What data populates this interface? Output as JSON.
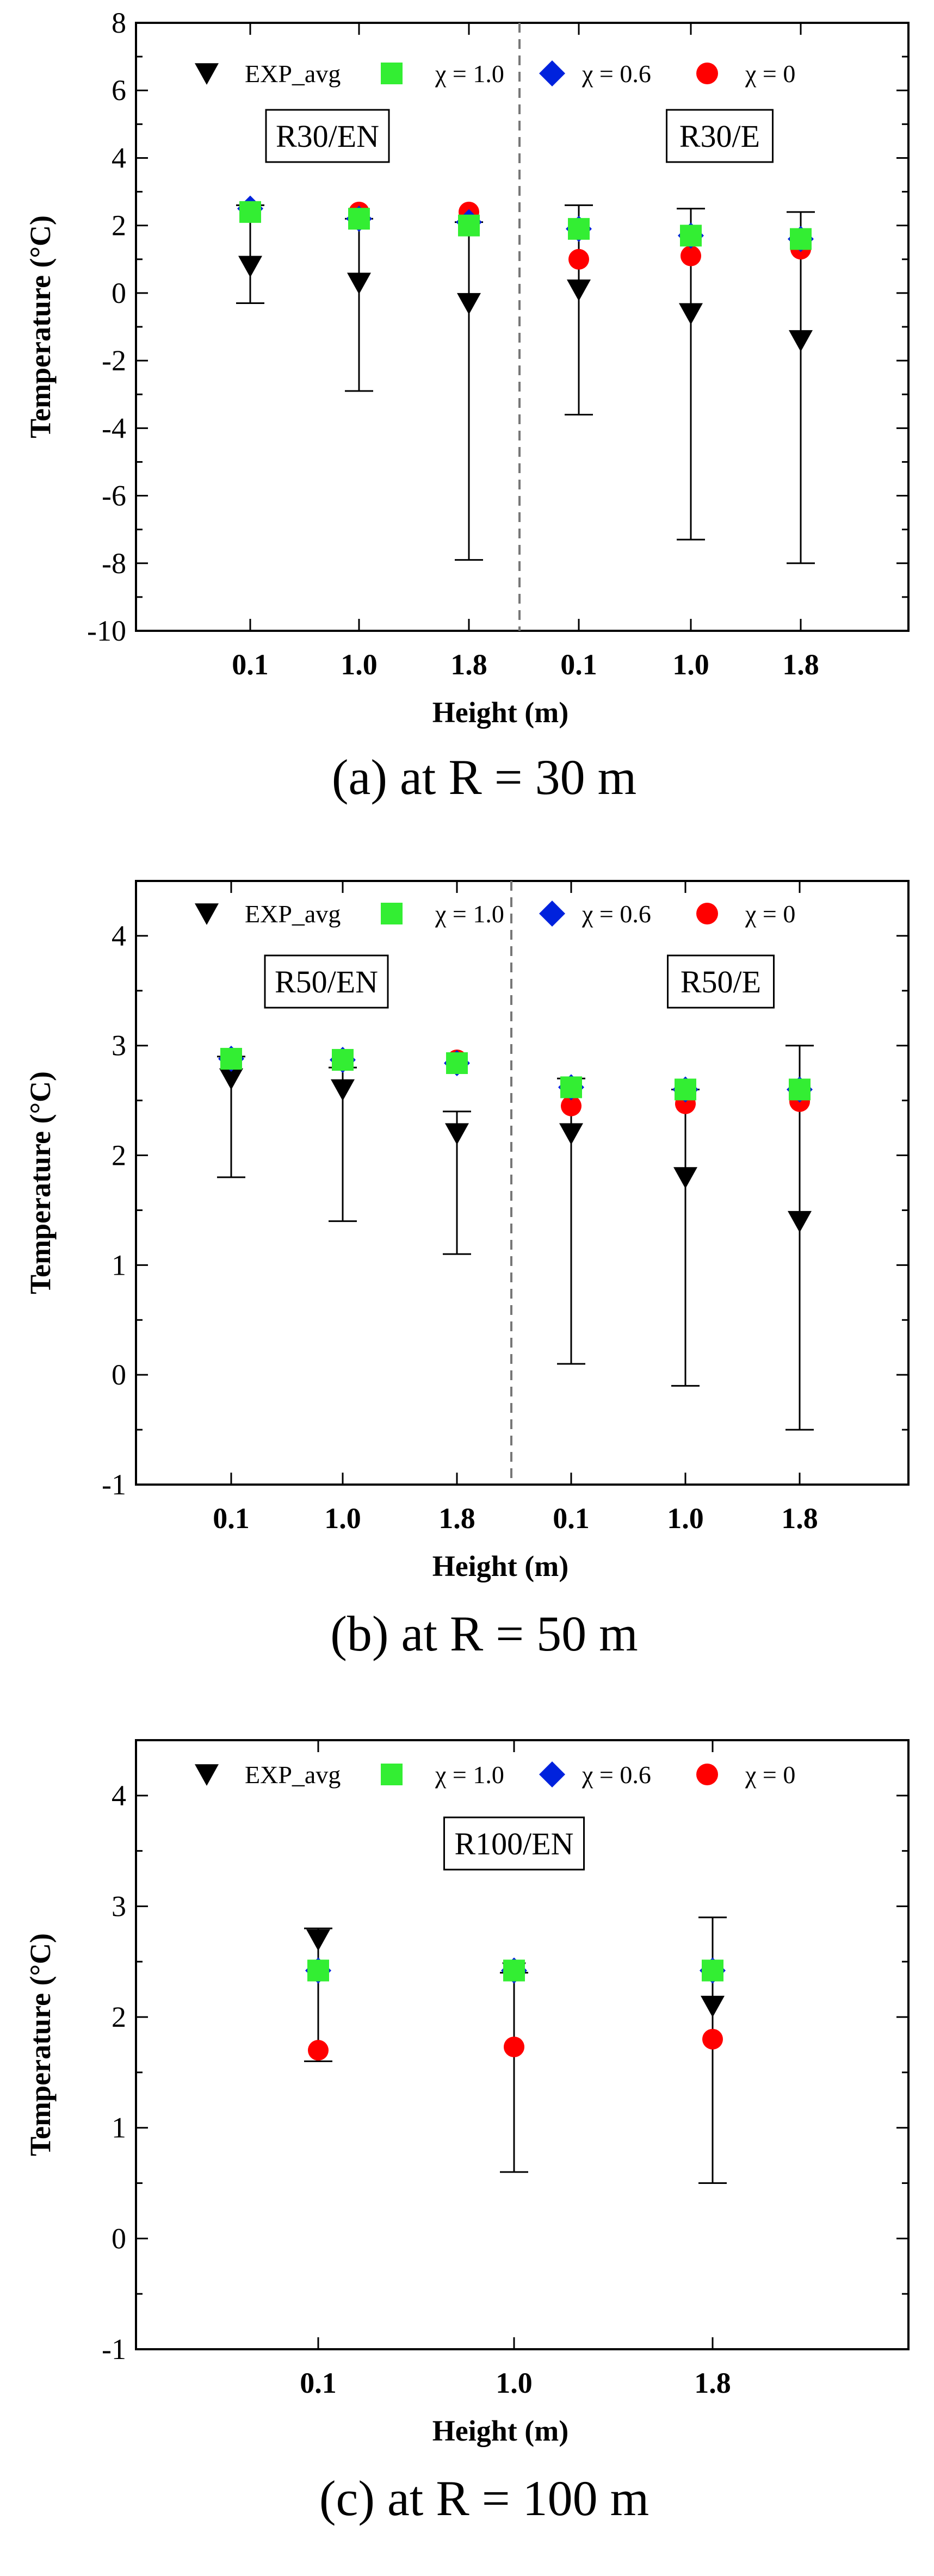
{
  "chart_data": [
    {
      "type": "scatter",
      "ylabel": "Temperature (°C)",
      "xlabel": "Height (m)",
      "caption": "(a) at R = 30 m",
      "ylim": [
        -10,
        8
      ],
      "yticks": [
        -10,
        -8,
        -6,
        -4,
        -2,
        0,
        2,
        4,
        6,
        8
      ],
      "categories": [
        "0.1",
        "1.0",
        "1.8",
        "0.1",
        "1.0",
        "1.8"
      ],
      "divider_after_index": 2,
      "group_labels": [
        "R30/EN",
        "R30/E"
      ],
      "legend": [
        "EXP_avg",
        "χ = 1.0",
        "χ = 0.6",
        "χ = 0"
      ],
      "series": [
        {
          "name": "EXP_avg",
          "marker": "triangle-down",
          "color": "#000000",
          "values": [
            0.8,
            0.3,
            -0.3,
            0.1,
            -0.6,
            -1.4
          ],
          "error_low": [
            -0.3,
            -2.9,
            -7.9,
            -3.6,
            -7.3,
            -8.0
          ],
          "error_high": [
            2.6,
            2.2,
            2.1,
            2.6,
            2.5,
            2.4
          ]
        },
        {
          "name": "χ = 0",
          "marker": "circle",
          "color": "#ff0000",
          "values": [
            2.4,
            2.4,
            2.4,
            1.0,
            1.1,
            1.3
          ]
        },
        {
          "name": "χ = 0.6",
          "marker": "diamond",
          "color": "#0022dd",
          "values": [
            2.5,
            2.2,
            2.1,
            1.9,
            1.7,
            1.6
          ]
        },
        {
          "name": "χ = 1.0",
          "marker": "square",
          "color": "#33ee33",
          "values": [
            2.4,
            2.2,
            2.0,
            1.9,
            1.7,
            1.6
          ]
        }
      ]
    },
    {
      "type": "scatter",
      "ylabel": "Temperature (°C)",
      "xlabel": "Height (m)",
      "caption": "(b) at R = 50 m",
      "ylim": [
        -1,
        4.5
      ],
      "yticks": [
        -1,
        0,
        1,
        2,
        3,
        4
      ],
      "categories": [
        "0.1",
        "1.0",
        "1.8",
        "0.1",
        "1.0",
        "1.8"
      ],
      "divider_after_index": 2,
      "group_labels": [
        "R50/EN",
        "R50/E"
      ],
      "legend": [
        "EXP_avg",
        "χ = 1.0",
        "χ = 0.6",
        "χ = 0"
      ],
      "series": [
        {
          "name": "EXP_avg",
          "marker": "triangle-down",
          "color": "#000000",
          "values": [
            2.7,
            2.6,
            2.2,
            2.2,
            1.8,
            1.4
          ],
          "error_low": [
            1.8,
            1.4,
            1.1,
            0.1,
            -0.1,
            -0.5
          ],
          "error_high": [
            2.9,
            2.8,
            2.4,
            2.7,
            2.6,
            3.0
          ]
        },
        {
          "name": "χ = 0",
          "marker": "circle",
          "color": "#ff0000",
          "values": [
            2.88,
            2.87,
            2.87,
            2.45,
            2.47,
            2.49
          ]
        },
        {
          "name": "χ = 0.6",
          "marker": "diamond",
          "color": "#0022dd",
          "values": [
            2.88,
            2.87,
            2.84,
            2.62,
            2.6,
            2.6
          ]
        },
        {
          "name": "χ = 1.0",
          "marker": "square",
          "color": "#33ee33",
          "values": [
            2.88,
            2.87,
            2.84,
            2.62,
            2.6,
            2.6
          ]
        }
      ]
    },
    {
      "type": "scatter",
      "ylabel": "Temperature (°C)",
      "xlabel": "Height (m)",
      "caption": "(c) at R = 100 m",
      "ylim": [
        -1,
        4.5
      ],
      "yticks": [
        -1,
        0,
        1,
        2,
        3,
        4
      ],
      "categories": [
        "0.1",
        "1.0",
        "1.8"
      ],
      "divider_after_index": null,
      "group_labels": [
        "R100/EN"
      ],
      "legend": [
        "EXP_avg",
        "χ = 1.0",
        "χ = 0.6",
        "χ = 0"
      ],
      "series": [
        {
          "name": "EXP_avg",
          "marker": "triangle-down",
          "color": "#000000",
          "values": [
            2.7,
            2.4,
            2.1
          ],
          "error_low": [
            1.6,
            0.6,
            0.5
          ],
          "error_high": [
            2.8,
            2.4,
            2.9
          ]
        },
        {
          "name": "χ = 0",
          "marker": "circle",
          "color": "#ff0000",
          "values": [
            1.7,
            1.73,
            1.8
          ]
        },
        {
          "name": "χ = 0.6",
          "marker": "diamond",
          "color": "#0022dd",
          "values": [
            2.42,
            2.42,
            2.42
          ]
        },
        {
          "name": "χ = 1.0",
          "marker": "square",
          "color": "#33ee33",
          "values": [
            2.42,
            2.42,
            2.42
          ]
        }
      ]
    }
  ]
}
